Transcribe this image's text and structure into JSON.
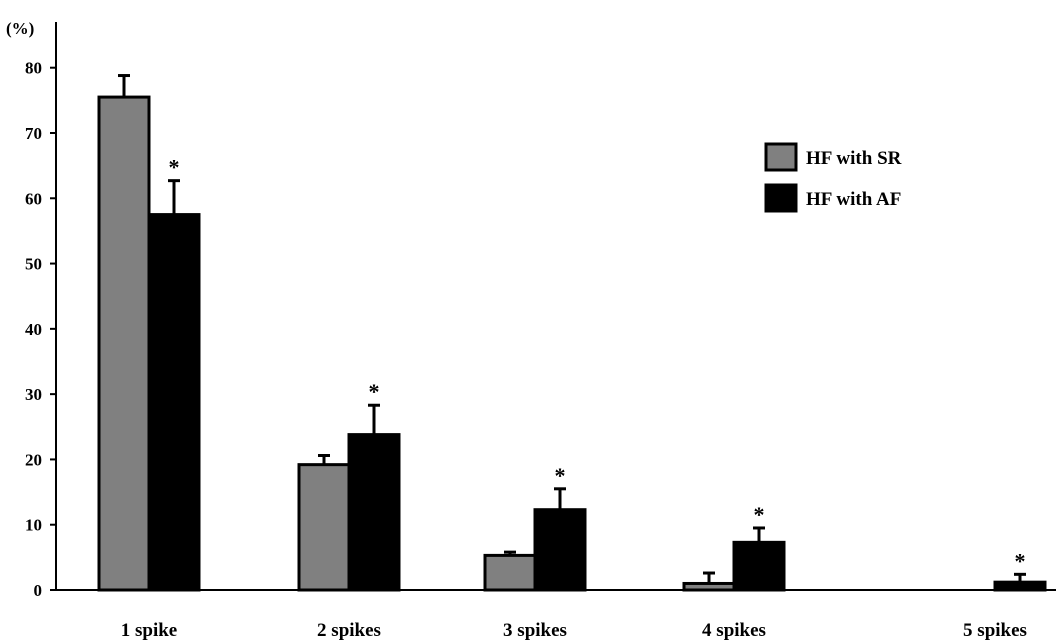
{
  "chart_data": {
    "type": "bar",
    "title": "",
    "xlabel": "",
    "ylabel": "(%)",
    "ylim": [
      0,
      87
    ],
    "yticks": [
      0,
      10,
      20,
      30,
      40,
      50,
      60,
      70,
      80
    ],
    "categories": [
      "1 spike",
      "2 spikes",
      "3 spikes",
      "4 spikes",
      "5 spikes"
    ],
    "series": [
      {
        "name": "HF with SR",
        "color": "#808080",
        "values": [
          75.5,
          19.2,
          5.3,
          1.0,
          0
        ],
        "error": [
          3.3,
          1.4,
          0.5,
          1.6,
          0
        ]
      },
      {
        "name": "HF with AF",
        "color": "#000000",
        "values": [
          57.5,
          23.8,
          12.3,
          7.3,
          1.2
        ],
        "error": [
          5.2,
          4.5,
          3.2,
          2.2,
          1.2
        ]
      }
    ],
    "significance": [
      {
        "category": "1 spike",
        "series": "HF with AF",
        "label": "*"
      },
      {
        "category": "2 spikes",
        "series": "HF with AF",
        "label": "*"
      },
      {
        "category": "3 spikes",
        "series": "HF with AF",
        "label": "*"
      },
      {
        "category": "4 spikes",
        "series": "HF with AF",
        "label": "*"
      },
      {
        "category": "5 spikes",
        "series": "HF with AF",
        "label": "*"
      }
    ],
    "legend": "right",
    "grid": false
  }
}
